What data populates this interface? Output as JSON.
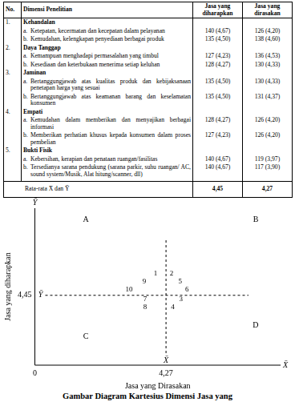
{
  "table": {
    "header": [
      "No.",
      "Dimensi Penelitian",
      "Jasa yang diharapkan",
      "Jasa yang dirasakan"
    ],
    "groups": [
      {
        "no": "1.",
        "name": "Kehandalan",
        "items": [
          {
            "label": "a.",
            "text": "Ketepatan, kecermatan dan kecepatan dalam pelayanan",
            "expected": "140 (4,67)",
            "perceived": "126 (4,20)"
          },
          {
            "label": "b.",
            "text": "Kemudahan, kelengkapan penyediaan berbagai produk",
            "expected": "135 (4,50)",
            "perceived": "138 (4,60)"
          }
        ]
      },
      {
        "no": "2.",
        "name": "Daya Tanggap",
        "items": [
          {
            "label": "a.",
            "text": "Kemampuan menghadapi permasalahan yang timbul",
            "expected": "127 (4,23)",
            "perceived": "136 (4,53)"
          },
          {
            "label": "b.",
            "text": "Kesediaan dan keterbukaan menerima setiap keluhan",
            "expected": "128 (4,27)",
            "perceived": "130 (4,33)"
          }
        ]
      },
      {
        "no": "3.",
        "name": "Jaminan",
        "items": [
          {
            "label": "a.",
            "text": "Bertanggungjawab atas kualitas produk dan kebijaksanaan penetapan harga yang sesuai",
            "expected": "135 (4,50)",
            "perceived": "130 (4,33)"
          },
          {
            "label": "b.",
            "text": "Bertanggungjawab atas keamanan barang dan keselamatan konsumen",
            "expected": "135 (4,50)",
            "perceived": "131 (4,37)"
          }
        ]
      },
      {
        "no": "4.",
        "name": "Empati",
        "items": [
          {
            "label": "a.",
            "text": "Kemudahan dalam memberikan dan menyajikan berbagai informasi",
            "expected": "128 (4,27)",
            "perceived": "126 (4,20)"
          },
          {
            "label": "b.",
            "text": "Memberikan perhatian khusus kepada konsumen dalam proses pembelian",
            "expected": "127 (4,23)",
            "perceived": "126 (4,20)"
          }
        ]
      },
      {
        "no": "5.",
        "name": "Bukti Fisik",
        "items": [
          {
            "label": "a.",
            "text": "Kebersihan, kerapian dan penataan ruangan/fasilitas",
            "expected": "140 (4,67)",
            "perceived": "119 (3,97)"
          },
          {
            "label": "b.",
            "text": "Tersedianya sarana pendukung (sarana parkir, suhu ruangan/ AC, sound system/Musik, Alat hitung/scanner, dll)",
            "expected": "140 (4,67)",
            "perceived": "117 (3,90)"
          }
        ]
      }
    ],
    "footer": {
      "label": "Rata-rata X̄ dan Ȳ",
      "expected": "4,45",
      "perceived": "4,27"
    }
  },
  "chart_data": {
    "type": "scatter",
    "xlabel": "Jasa yang Dirasakan",
    "ylabel": "Jasa yang diharapkan",
    "xlim": [
      0,
      8
    ],
    "ylim": [
      0,
      10
    ],
    "xticks": [
      0,
      {
        "value": 4.27,
        "label": "4,27"
      }
    ],
    "yticks": [
      {
        "value": 4.45,
        "label": "4,45"
      }
    ],
    "grid": false,
    "axis_end_labels": {
      "x": "X̄",
      "y": "Ȳ"
    },
    "reference_lines": [
      {
        "axis": "x",
        "value": 4.27,
        "label": "X̄"
      },
      {
        "axis": "y",
        "value": 4.45,
        "label": "Ȳ"
      }
    ],
    "quadrants": [
      {
        "text": "A",
        "x": 1.66,
        "y": 9.27
      },
      {
        "text": "B",
        "x": 7.19,
        "y": 9.27
      },
      {
        "text": "C",
        "x": 1.66,
        "y": 1.83
      },
      {
        "text": "D",
        "x": 7.19,
        "y": 2.53
      }
    ],
    "series": [
      {
        "names": [
          "1",
          "2",
          "3",
          "4",
          "5",
          "6",
          "7",
          "8",
          "9",
          "10"
        ],
        "x": [
          3.93,
          4.45,
          4.76,
          4.49,
          4.73,
          4.95,
          3.59,
          3.59,
          3.56,
          3.07
        ],
        "values": [
          5.85,
          5.85,
          4.22,
          3.7,
          5.34,
          4.82,
          4.22,
          3.7,
          5.34,
          4.82
        ],
        "color": "#000000",
        "marker": "none"
      }
    ]
  },
  "caption": "Gambar Diagram Kartesius Dimensi Jasa yang"
}
